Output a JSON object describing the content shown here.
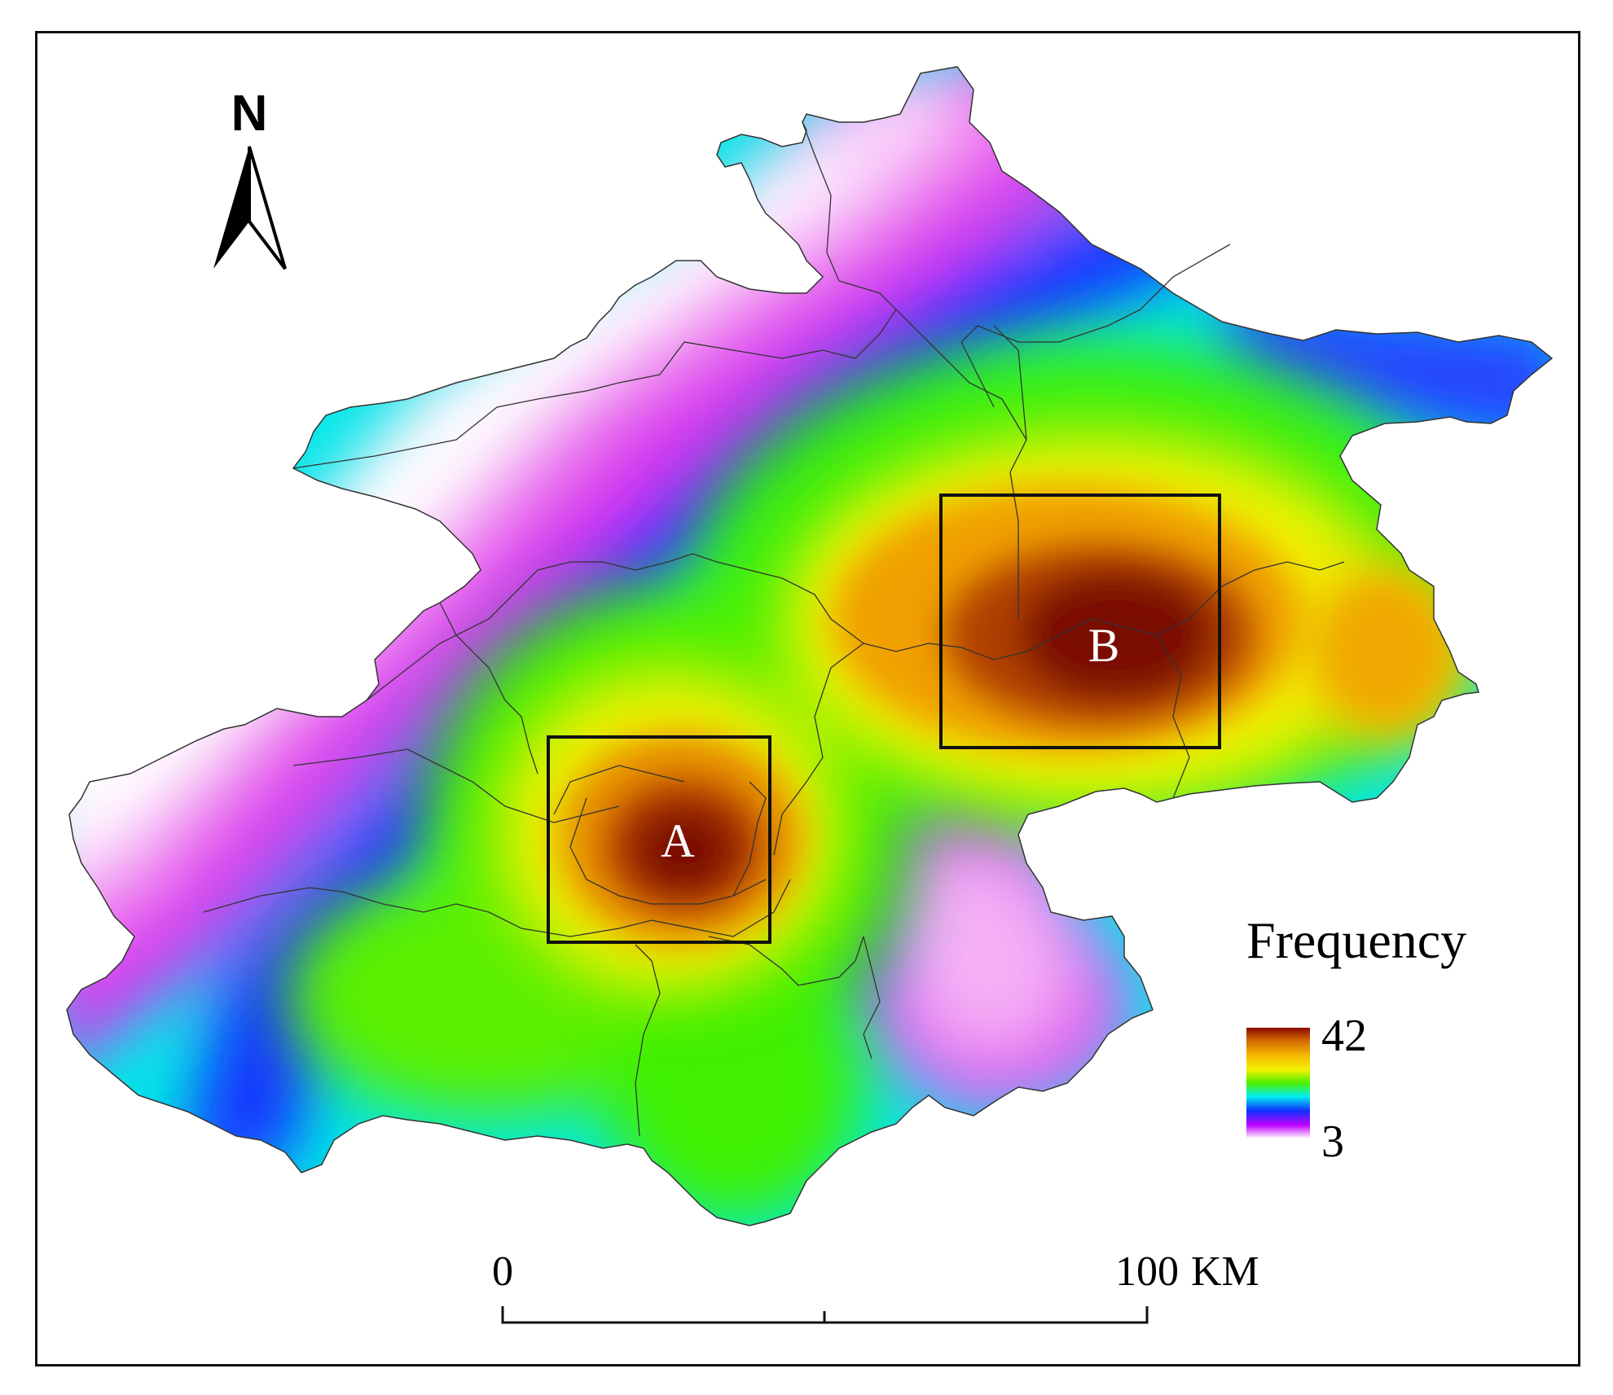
{
  "north_arrow": {
    "label": "N"
  },
  "legend": {
    "title": "Frequency",
    "max_label": "42",
    "min_label": "3",
    "min_value": 3,
    "max_value": 42,
    "color_ramp": [
      "#8b0a00",
      "#d46a00",
      "#f5b800",
      "#f2f200",
      "#4cf000",
      "#00f0f0",
      "#1030ff",
      "#c000ff",
      "#ffffff"
    ]
  },
  "hotspots": [
    {
      "label": "A"
    },
    {
      "label": "B"
    }
  ],
  "scale_bar": {
    "start_label": "0",
    "end_value": "100",
    "unit": "KM"
  },
  "colors": {
    "frame": "#111111",
    "boundary": "#333333",
    "box": "#111111"
  }
}
